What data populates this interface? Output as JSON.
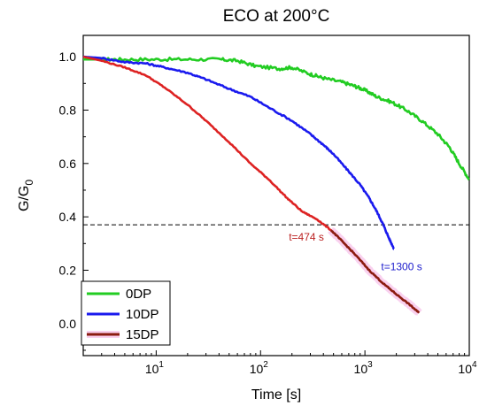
{
  "chart_data": {
    "type": "line",
    "title": "ECO at 200°C",
    "xlabel": "Time [s]",
    "ylabel_main": "G/G",
    "ylabel_sub": "0",
    "x_scale": "log",
    "xlim": [
      2,
      10000
    ],
    "ylim": [
      -0.12,
      1.08
    ],
    "x_ticks": [
      {
        "value": 10,
        "base": "10",
        "exp": "1"
      },
      {
        "value": 100,
        "base": "10",
        "exp": "2"
      },
      {
        "value": 1000,
        "base": "10",
        "exp": "3"
      },
      {
        "value": 10000,
        "base": "10",
        "exp": "4"
      }
    ],
    "y_ticks": [
      {
        "value": 0.0,
        "label": "0.0"
      },
      {
        "value": 0.2,
        "label": "0.2"
      },
      {
        "value": 0.4,
        "label": "0.4"
      },
      {
        "value": 0.6,
        "label": "0.6"
      },
      {
        "value": 0.8,
        "label": "0.8"
      },
      {
        "value": 1.0,
        "label": "1.0"
      }
    ],
    "reference_line": {
      "y": 0.37,
      "style": "dashed"
    },
    "legend_position": "bottom-left",
    "series": [
      {
        "name": "0DP",
        "color": "#22cc22",
        "points": [
          [
            2,
            0.99
          ],
          [
            3,
            0.99
          ],
          [
            5,
            0.99
          ],
          [
            10,
            0.99
          ],
          [
            20,
            0.99
          ],
          [
            40,
            0.99
          ],
          [
            60,
            0.985
          ],
          [
            90,
            0.965
          ],
          [
            150,
            0.955
          ],
          [
            200,
            0.96
          ],
          [
            300,
            0.935
          ],
          [
            400,
            0.92
          ],
          [
            600,
            0.905
          ],
          [
            800,
            0.89
          ],
          [
            1000,
            0.875
          ],
          [
            1300,
            0.85
          ],
          [
            1800,
            0.83
          ],
          [
            2500,
            0.8
          ],
          [
            3500,
            0.76
          ],
          [
            5000,
            0.71
          ],
          [
            6500,
            0.66
          ],
          [
            8000,
            0.6
          ],
          [
            10000,
            0.54
          ]
        ]
      },
      {
        "name": "10DP",
        "color": "#1a1aee",
        "points": [
          [
            2,
            1.0
          ],
          [
            3,
            0.995
          ],
          [
            5,
            0.98
          ],
          [
            8,
            0.975
          ],
          [
            12,
            0.96
          ],
          [
            20,
            0.94
          ],
          [
            30,
            0.915
          ],
          [
            50,
            0.88
          ],
          [
            80,
            0.85
          ],
          [
            120,
            0.81
          ],
          [
            200,
            0.76
          ],
          [
            300,
            0.71
          ],
          [
            400,
            0.67
          ],
          [
            500,
            0.635
          ],
          [
            700,
            0.57
          ],
          [
            900,
            0.52
          ],
          [
            1100,
            0.47
          ],
          [
            1300,
            0.42
          ],
          [
            1500,
            0.37
          ],
          [
            1700,
            0.32
          ],
          [
            1900,
            0.28
          ]
        ]
      },
      {
        "name": "15DP",
        "color": "#dd2222",
        "points": [
          [
            2,
            1.0
          ],
          [
            3,
            0.985
          ],
          [
            5,
            0.96
          ],
          [
            8,
            0.93
          ],
          [
            12,
            0.885
          ],
          [
            20,
            0.82
          ],
          [
            30,
            0.76
          ],
          [
            50,
            0.68
          ],
          [
            80,
            0.6
          ],
          [
            120,
            0.54
          ],
          [
            180,
            0.47
          ],
          [
            250,
            0.42
          ],
          [
            350,
            0.39
          ],
          [
            474,
            0.35
          ],
          [
            600,
            0.31
          ],
          [
            800,
            0.26
          ],
          [
            1100,
            0.2
          ],
          [
            1500,
            0.15
          ],
          [
            2000,
            0.11
          ],
          [
            2700,
            0.07
          ],
          [
            3300,
            0.04
          ]
        ]
      }
    ],
    "highlight_overlay": {
      "from_x": 474,
      "color": "#8b1c10",
      "glow": "#f7bde8"
    },
    "annotations": [
      {
        "text": "t=474 s",
        "x": 474,
        "y": 0.37,
        "color": "#bb2222"
      },
      {
        "text": "t=1300 s",
        "x": 1300,
        "y": 0.28,
        "color": "#1a1acc"
      }
    ]
  }
}
